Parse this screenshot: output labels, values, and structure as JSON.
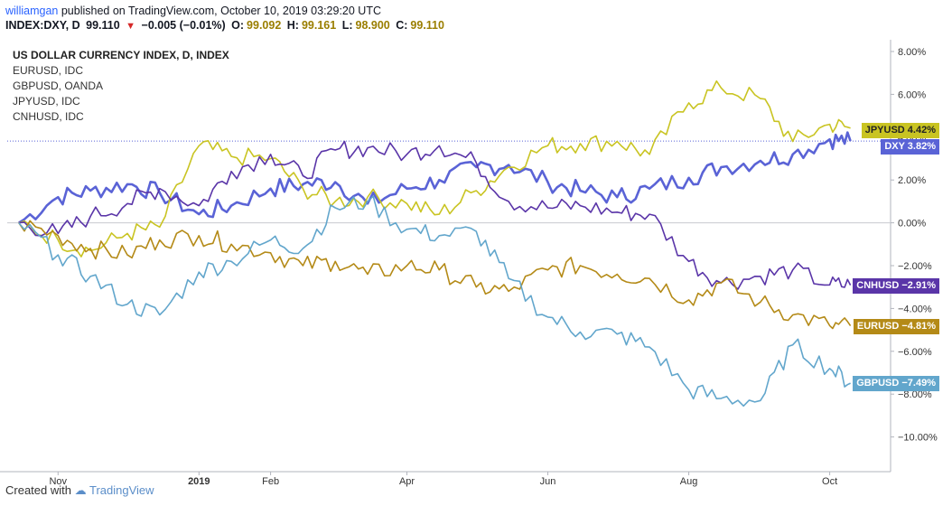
{
  "header": {
    "author": "williamgan",
    "published_text": "published on TradingView.com, October 10, 2019 03:29:20 UTC",
    "symbol": "INDEX:DXY, D",
    "price": "99.110",
    "change": "−0.005 (−0.01%)",
    "o_label": "O:",
    "o_value": "99.092",
    "h_label": "H:",
    "h_value": "99.161",
    "l_label": "L:",
    "l_value": "98.900",
    "c_label": "C:",
    "c_value": "99.110"
  },
  "footer": {
    "created_with": "Created with",
    "brand": "TradingView"
  },
  "chart_data": {
    "type": "line",
    "x_ticks": [
      "Nov",
      "2019",
      "Feb",
      "Apr",
      "Jun",
      "Aug",
      "Oct"
    ],
    "y_ticks": [
      "8.00%",
      "6.00%",
      "4.00%",
      "2.00%",
      "0.00%",
      "−2.00%",
      "−4.00%",
      "−6.00%",
      "−8.00%",
      "−10.00%"
    ],
    "ylim": [
      -10,
      8
    ],
    "grid": false,
    "legend_placement": "top-left",
    "legend_entries": [
      "US DOLLAR CURRENCY INDEX, D, INDEX",
      "EURUSD, IDC",
      "GBPUSD, OANDA",
      "JPYUSD, IDC",
      "CNHUSD, IDC"
    ],
    "x": [
      "2018-10-15",
      "2018-11-01",
      "2018-11-15",
      "2018-12-01",
      "2018-12-15",
      "2019-01-01",
      "2019-01-15",
      "2019-02-01",
      "2019-02-15",
      "2019-03-01",
      "2019-03-15",
      "2019-04-01",
      "2019-04-15",
      "2019-05-01",
      "2019-05-15",
      "2019-06-01",
      "2019-06-15",
      "2019-07-01",
      "2019-07-15",
      "2019-08-01",
      "2019-08-15",
      "2019-09-01",
      "2019-09-15",
      "2019-10-01",
      "2019-10-10"
    ],
    "series": [
      {
        "name": "DXY",
        "label": "3.82%",
        "color": "#5a63d6",
        "values": [
          0.0,
          1.2,
          1.5,
          1.8,
          1.4,
          0.4,
          0.8,
          1.6,
          1.8,
          1.9,
          0.9,
          1.6,
          2.0,
          2.6,
          2.7,
          1.9,
          1.5,
          1.2,
          1.6,
          2.1,
          2.6,
          2.9,
          3.2,
          3.9,
          3.82
        ]
      },
      {
        "name": "JPYUSD",
        "label": "4.42%",
        "color": "#c9c422",
        "values": [
          0.0,
          -0.8,
          -1.3,
          -0.5,
          -0.2,
          3.6,
          3.1,
          3.0,
          1.6,
          1.0,
          1.2,
          0.9,
          0.4,
          1.5,
          2.6,
          3.6,
          3.7,
          3.8,
          3.2,
          5.6,
          6.3,
          5.8,
          3.8,
          4.6,
          4.42
        ]
      },
      {
        "name": "CNHUSD",
        "label": "−2.91%",
        "color": "#5a35a8",
        "values": [
          0.0,
          -0.5,
          0.3,
          0.9,
          1.6,
          0.8,
          2.4,
          3.2,
          2.2,
          3.4,
          3.5,
          3.2,
          3.6,
          2.8,
          1.0,
          0.7,
          0.8,
          0.5,
          0.4,
          -1.8,
          -2.8,
          -2.5,
          -2.2,
          -2.9,
          -2.91
        ]
      },
      {
        "name": "EURUSD",
        "label": "−4.81%",
        "color": "#b48a17",
        "values": [
          0.0,
          -0.6,
          -1.2,
          -1.5,
          -0.8,
          -0.6,
          -1.0,
          -1.4,
          -2.0,
          -1.8,
          -2.4,
          -2.0,
          -2.2,
          -3.0,
          -3.2,
          -2.2,
          -2.0,
          -2.4,
          -2.6,
          -3.6,
          -2.8,
          -3.7,
          -4.3,
          -4.8,
          -4.81
        ]
      },
      {
        "name": "GBPUSD",
        "label": "−7.49%",
        "color": "#62a6cc",
        "values": [
          0.0,
          -1.5,
          -2.5,
          -3.8,
          -4.3,
          -2.3,
          -1.8,
          -0.8,
          -1.2,
          0.7,
          1.0,
          -0.3,
          -0.6,
          -0.4,
          -2.6,
          -4.4,
          -5.1,
          -5.2,
          -5.8,
          -7.8,
          -8.2,
          -8.3,
          -5.7,
          -6.8,
          -7.49
        ]
      }
    ]
  }
}
